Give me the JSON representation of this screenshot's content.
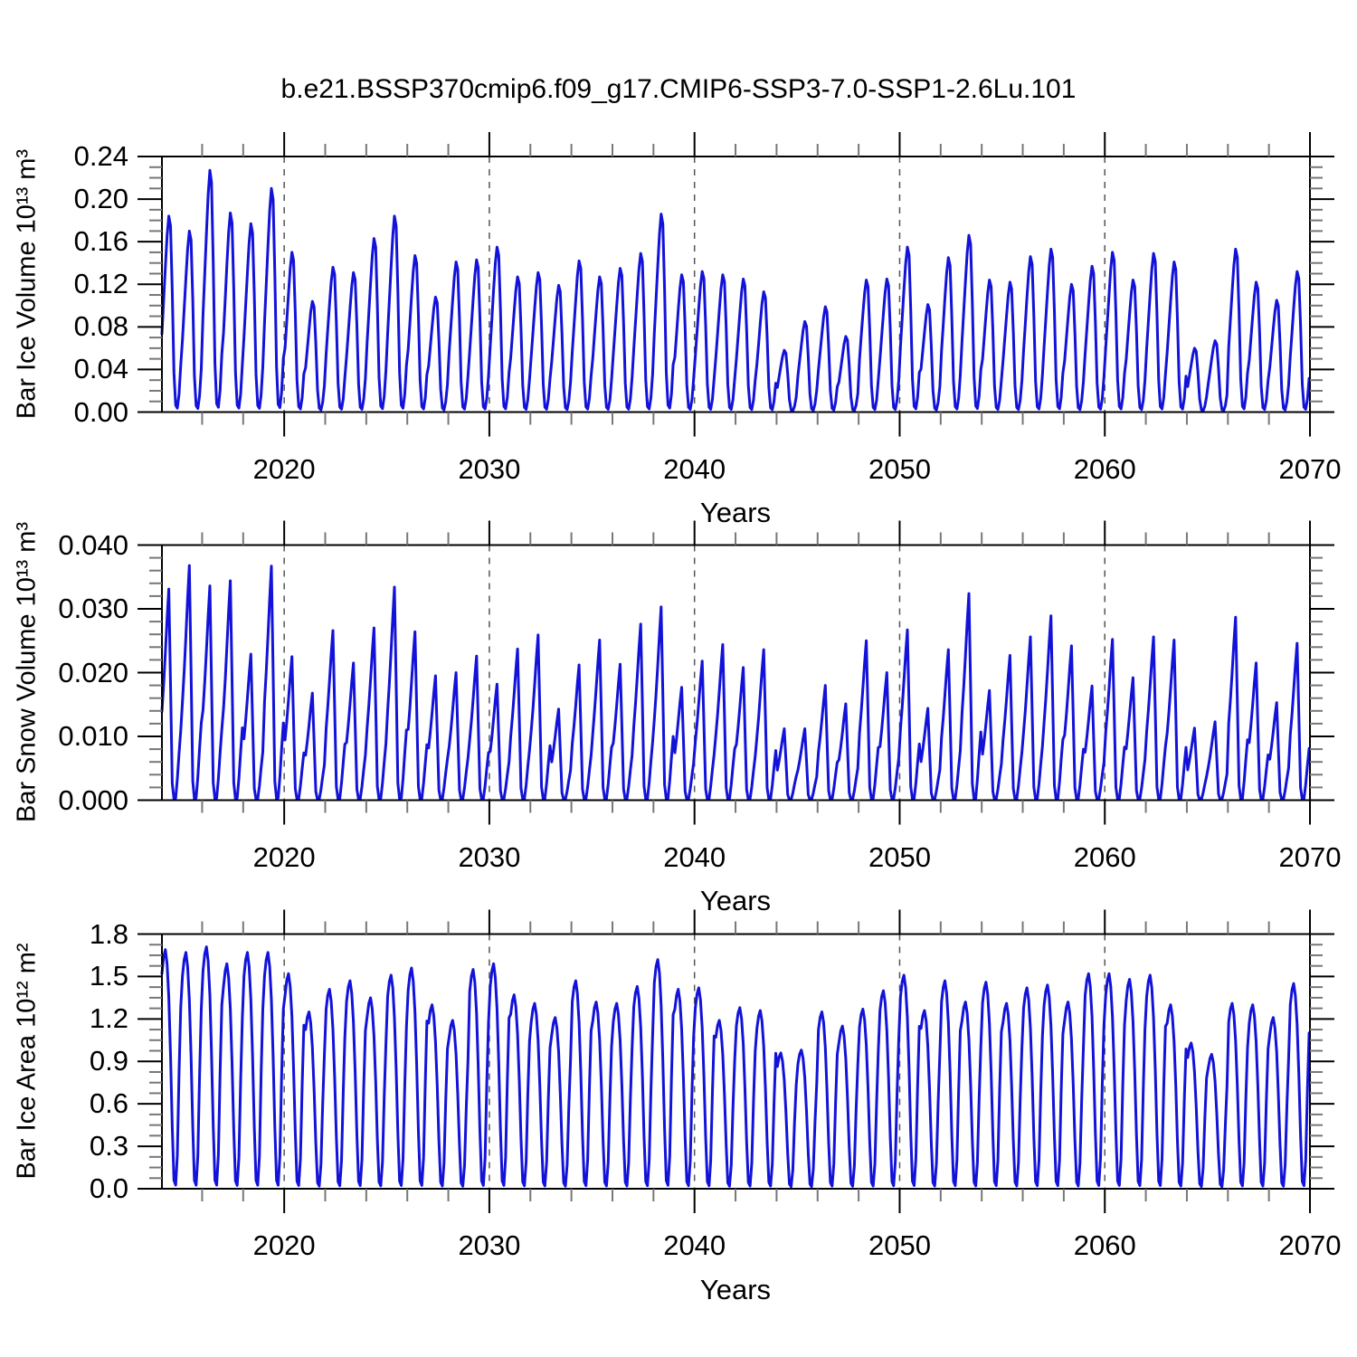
{
  "title": "b.e21.BSSP370cmip6.f09_g17.CMIP6-SSP3-7.0-SSP1-2.6Lu.101",
  "line_color": "#1212d9",
  "axis_color": "#000000",
  "minor_tick_color": "#777777",
  "gridline_color": "#555555",
  "chart_data": [
    {
      "type": "line",
      "ylabel": "Bar Ice Volume 10¹³ m³",
      "xlabel": "Years",
      "xlim": [
        2014.04,
        2070
      ],
      "ylim": [
        0,
        0.24
      ],
      "y_major_step": 0.04,
      "y_minor_step": 0.01,
      "x_minor_step": 2,
      "x_major_ticks": [
        2020,
        2030,
        2040,
        2050,
        2060,
        2070
      ],
      "xtick_labels": [
        "2020",
        "2030",
        "2040",
        "2050",
        "2060",
        "2070"
      ],
      "ytick_labels": [
        "0.00",
        "0.04",
        "0.08",
        "0.12",
        "0.16",
        "0.20",
        "0.24"
      ],
      "x_gridlines": [
        2020,
        2030,
        2040,
        2050,
        2060
      ],
      "grid_dashed": true,
      "legend": "none",
      "series": [
        {
          "name": "Bar Ice Volume",
          "start_year": 2014,
          "annual_peaks": [
            0.184,
            0.17,
            0.227,
            0.187,
            0.177,
            0.21,
            0.15,
            0.104,
            0.136,
            0.131,
            0.163,
            0.184,
            0.147,
            0.108,
            0.141,
            0.143,
            0.155,
            0.127,
            0.131,
            0.119,
            0.142,
            0.127,
            0.135,
            0.149,
            0.186,
            0.129,
            0.132,
            0.129,
            0.125,
            0.113,
            0.058,
            0.085,
            0.099,
            0.071,
            0.124,
            0.125,
            0.155,
            0.101,
            0.145,
            0.166,
            0.124,
            0.122,
            0.146,
            0.153,
            0.12,
            0.137,
            0.15,
            0.124,
            0.149,
            0.141,
            0.06,
            0.067,
            0.153,
            0.122,
            0.105,
            0.132
          ],
          "monthly_shape": [
            0.4,
            0.57,
            0.74,
            0.9,
            1.0,
            0.95,
            0.62,
            0.2,
            0.035,
            0.02,
            0.09,
            0.24
          ]
        }
      ]
    },
    {
      "type": "line",
      "ylabel": "Bar Snow Volume 10¹³ m³",
      "xlabel": "Years",
      "xlim": [
        2014.04,
        2070
      ],
      "ylim": [
        0,
        0.04
      ],
      "y_major_step": 0.01,
      "y_minor_step": 0.002,
      "x_minor_step": 2,
      "x_major_ticks": [
        2020,
        2030,
        2040,
        2050,
        2060,
        2070
      ],
      "xtick_labels": [
        "2020",
        "2030",
        "2040",
        "2050",
        "2060",
        "2070"
      ],
      "ytick_labels": [
        "0.000",
        "0.010",
        "0.020",
        "0.030",
        "0.040"
      ],
      "x_gridlines": [
        2020,
        2030,
        2040,
        2050,
        2060
      ],
      "grid_dashed": true,
      "legend": "none",
      "series": [
        {
          "name": "Bar Snow Volume",
          "start_year": 2014,
          "annual_peaks": [
            0.0331,
            0.0368,
            0.0336,
            0.0344,
            0.0229,
            0.0367,
            0.0225,
            0.0168,
            0.0266,
            0.0215,
            0.027,
            0.0334,
            0.0264,
            0.0195,
            0.02,
            0.0226,
            0.0182,
            0.0237,
            0.0259,
            0.0143,
            0.0212,
            0.0251,
            0.0213,
            0.0276,
            0.0303,
            0.0177,
            0.0218,
            0.0244,
            0.0208,
            0.0236,
            0.0112,
            0.0112,
            0.018,
            0.0151,
            0.025,
            0.02,
            0.0267,
            0.0144,
            0.0236,
            0.0324,
            0.0172,
            0.0227,
            0.0256,
            0.0289,
            0.0242,
            0.0179,
            0.0252,
            0.0192,
            0.0256,
            0.0251,
            0.0113,
            0.0123,
            0.0287,
            0.0215,
            0.0153,
            0.0246
          ],
          "monthly_shape": [
            0.42,
            0.55,
            0.7,
            0.86,
            1.0,
            0.55,
            0.08,
            0.005,
            0.01,
            0.1,
            0.22,
            0.33
          ]
        }
      ]
    },
    {
      "type": "line",
      "ylabel": "Bar Ice Area 10¹² m²",
      "xlabel": "Years",
      "xlim": [
        2014.04,
        2070
      ],
      "ylim": [
        0,
        1.8
      ],
      "y_major_step": 0.3,
      "y_minor_step": 0.075,
      "x_minor_step": 2,
      "x_major_ticks": [
        2020,
        2030,
        2040,
        2050,
        2060,
        2070
      ],
      "xtick_labels": [
        "2020",
        "2030",
        "2040",
        "2050",
        "2060",
        "2070"
      ],
      "ytick_labels": [
        "0.0",
        "0.3",
        "0.6",
        "0.9",
        "1.2",
        "1.5",
        "1.8"
      ],
      "x_gridlines": [
        2020,
        2030,
        2040,
        2050,
        2060
      ],
      "grid_dashed": true,
      "legend": "none",
      "series": [
        {
          "name": "Bar Ice Area",
          "start_year": 2014,
          "annual_peaks": [
            1.69,
            1.67,
            1.71,
            1.59,
            1.67,
            1.67,
            1.52,
            1.25,
            1.41,
            1.47,
            1.35,
            1.51,
            1.56,
            1.3,
            1.19,
            1.55,
            1.59,
            1.37,
            1.31,
            1.21,
            1.47,
            1.32,
            1.31,
            1.43,
            1.62,
            1.41,
            1.42,
            1.19,
            1.28,
            1.26,
            0.96,
            0.98,
            1.25,
            1.15,
            1.27,
            1.4,
            1.51,
            1.26,
            1.47,
            1.32,
            1.46,
            1.31,
            1.42,
            1.44,
            1.32,
            1.52,
            1.52,
            1.48,
            1.51,
            1.3,
            1.03,
            0.95,
            1.31,
            1.3,
            1.21,
            1.45
          ],
          "monthly_shape": [
            0.9,
            0.97,
            1.0,
            0.94,
            0.8,
            0.56,
            0.26,
            0.035,
            0.015,
            0.14,
            0.48,
            0.76
          ]
        }
      ]
    }
  ]
}
